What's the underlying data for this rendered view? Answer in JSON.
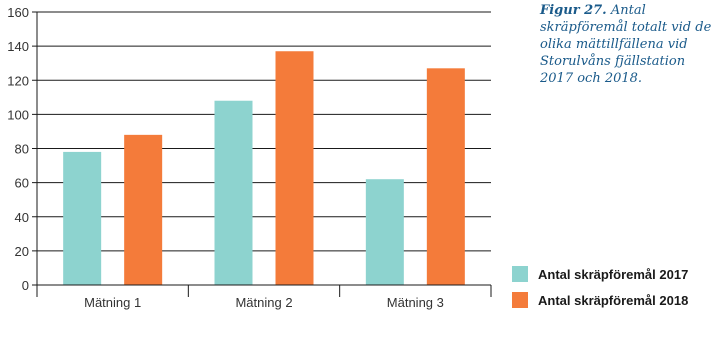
{
  "caption": {
    "figure": "Figur 27.",
    "text": "Antal skräpföremål totalt vid de olika mättillfällena vid Storulvåns fjällstation 2017 och 2018."
  },
  "chart_data": {
    "type": "bar",
    "categories": [
      "Mätning 1",
      "Mätning 2",
      "Mätning 3"
    ],
    "series": [
      {
        "name": "Antal skräpföremål 2017",
        "color": "#8dd3cf",
        "values": [
          78,
          108,
          62
        ]
      },
      {
        "name": "Antal skräpföremål 2018",
        "color": "#f47b3a",
        "values": [
          88,
          137,
          127
        ]
      }
    ],
    "ylim": [
      0,
      160
    ],
    "yticks": [
      0,
      20,
      40,
      60,
      80,
      100,
      120,
      140,
      160
    ],
    "grid": true,
    "legend_position": "bottom-right"
  }
}
